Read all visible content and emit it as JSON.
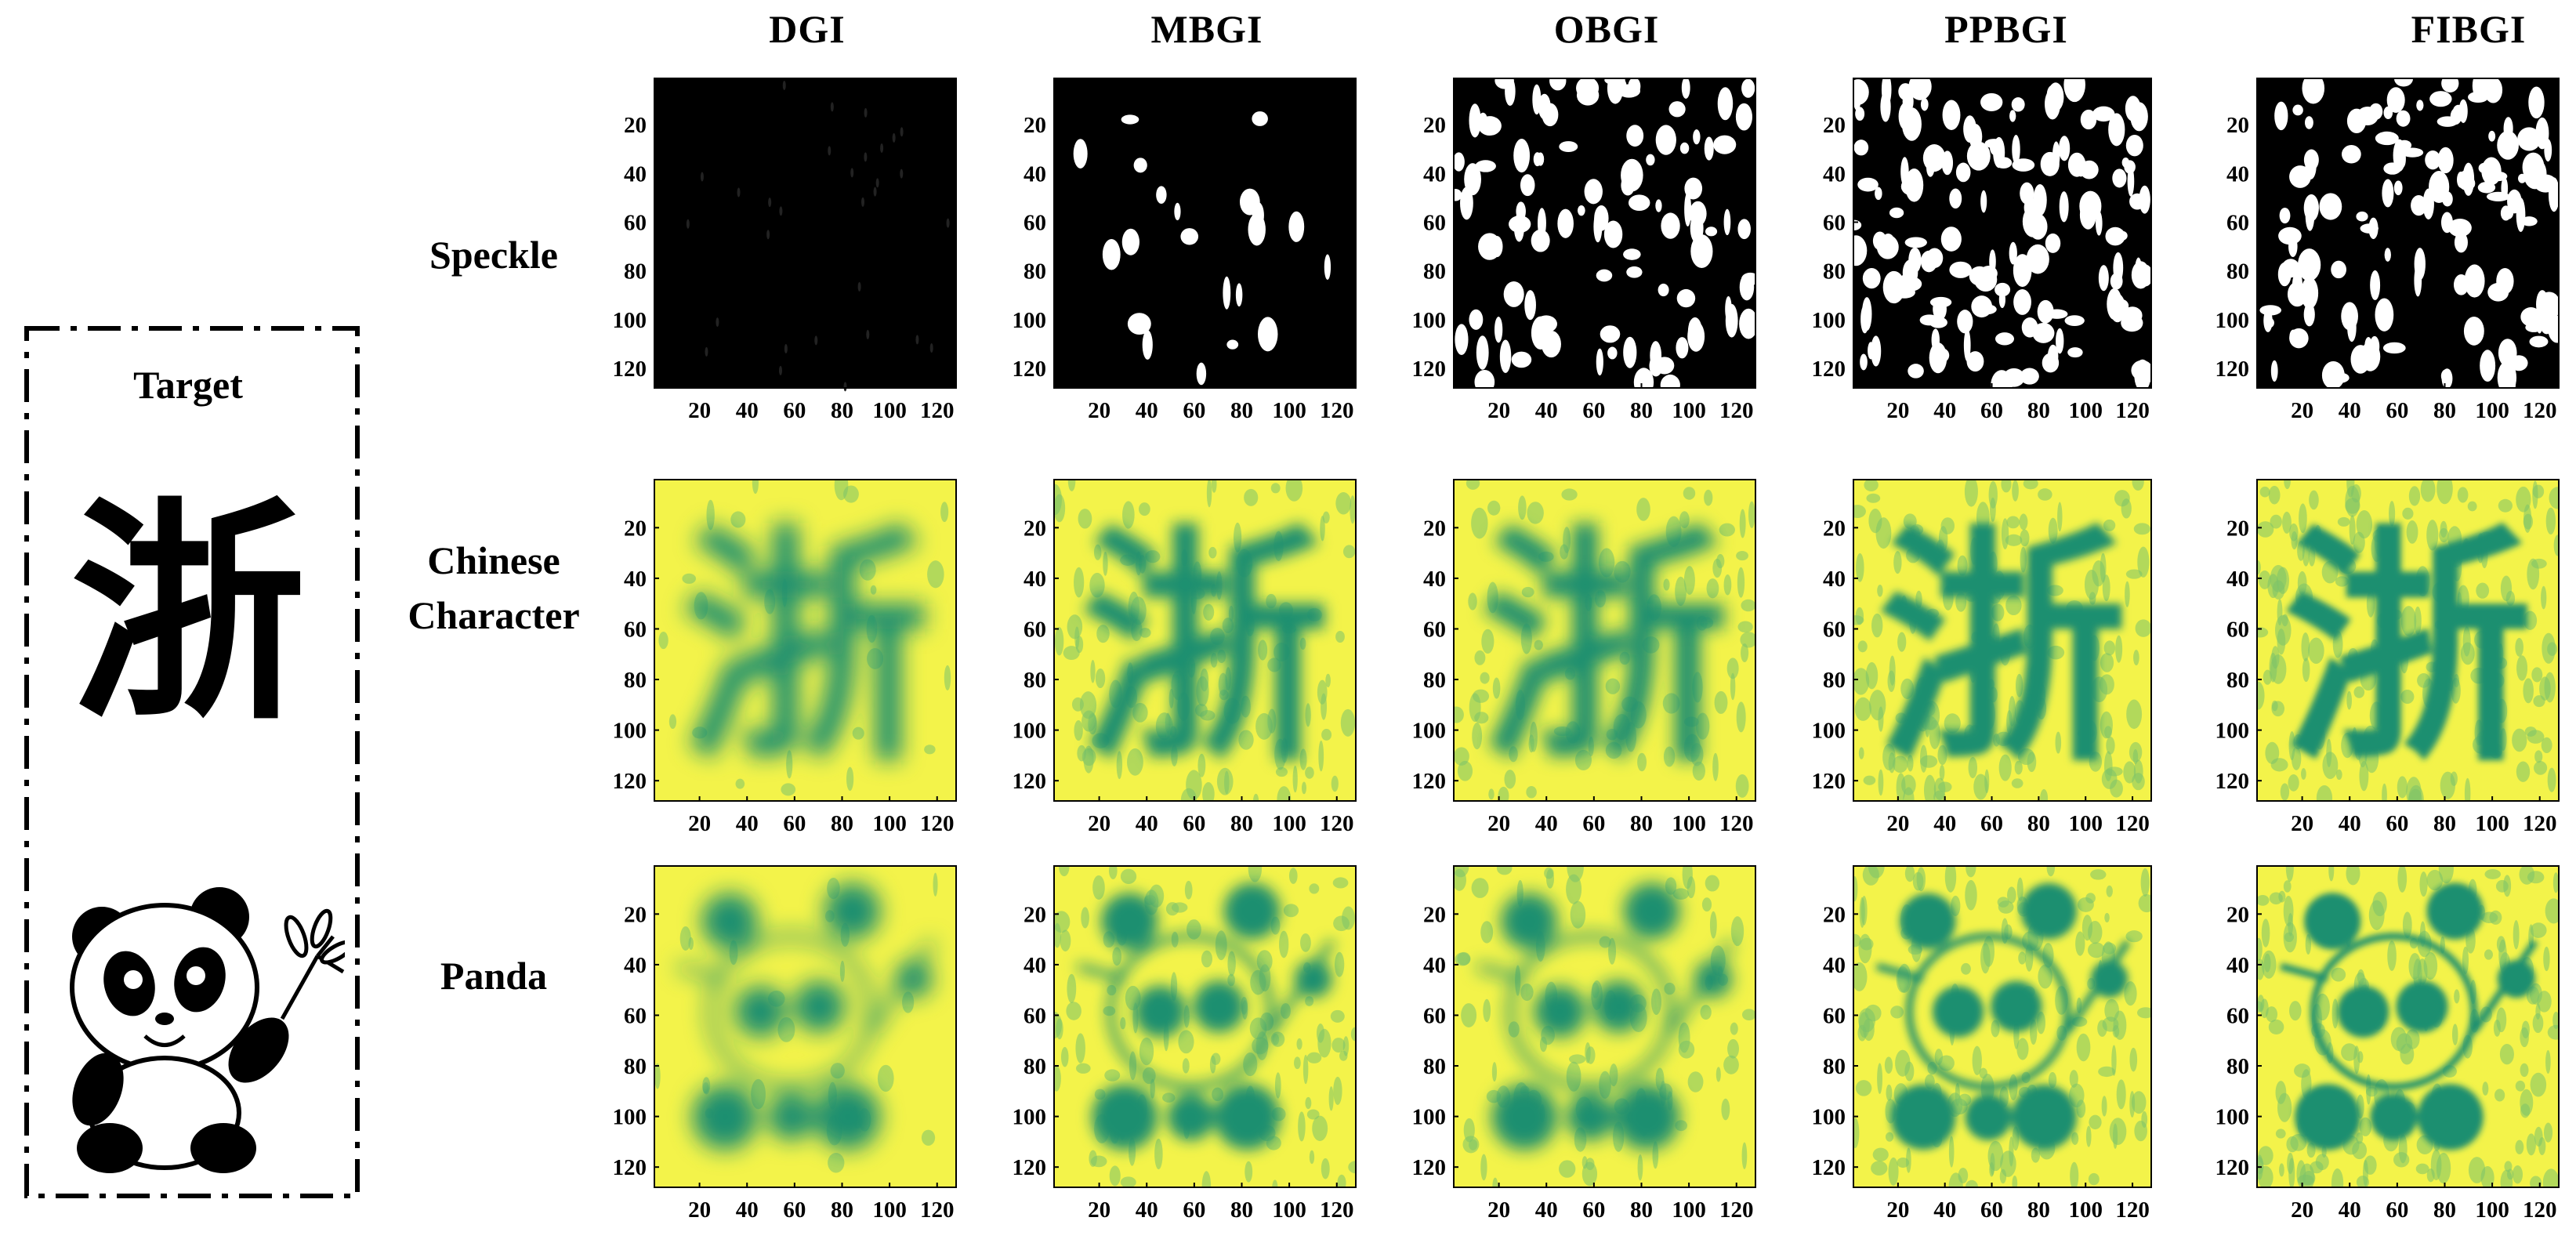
{
  "columns": [
    "DGI",
    "MBGI",
    "OBGI",
    "PPBGI",
    "FIBGI"
  ],
  "rows": [
    "Speckle",
    "Chinese\nCharacter",
    "Panda"
  ],
  "row_labels": {
    "speckle": "Speckle",
    "chinese_1": "Chinese",
    "chinese_2": "Character",
    "panda": "Panda"
  },
  "target": {
    "title": "Target",
    "char": "浙"
  },
  "axes": {
    "x_ticks": [
      "20",
      "40",
      "60",
      "80",
      "100",
      "120"
    ],
    "y_ticks": [
      "20",
      "40",
      "60",
      "80",
      "100",
      "120"
    ],
    "range": [
      1,
      128
    ]
  },
  "colors": {
    "speckle_bg": "#000000",
    "speckle_fg": "#ffffff",
    "recon_low": "#1f8f70",
    "recon_high": "#f3f34a"
  }
}
